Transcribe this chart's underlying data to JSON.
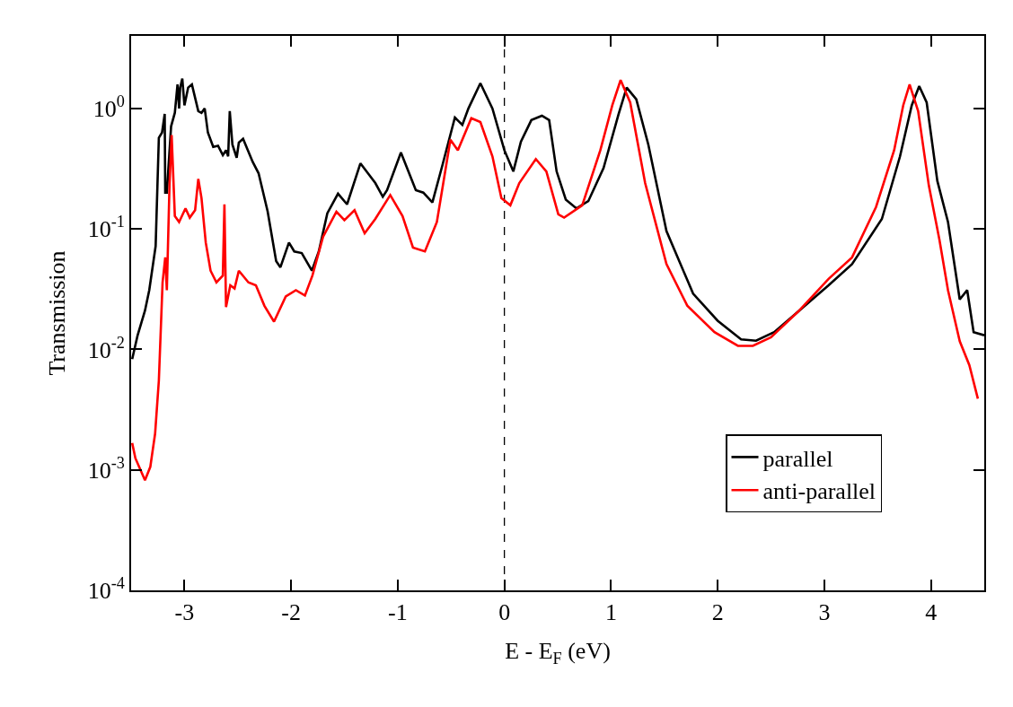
{
  "chart_data": {
    "type": "line",
    "xlabel": "E - E$_{F}$ (eV)",
    "ylabel": "Transmission",
    "log": "y",
    "grid": false,
    "legend": "bottom right",
    "line_style": "solid",
    "marker": "none",
    "xlim": [
      -3.5,
      4.5
    ],
    "xticks": [
      -3,
      -2,
      -1,
      0,
      1,
      2,
      3,
      4
    ],
    "ylim": [
      0.0001,
      4
    ],
    "yticks": [
      {
        "value": 1,
        "label": "10$^{0}$"
      },
      {
        "value": 0.1,
        "label": "10$^{-1}$"
      },
      {
        "value": 0.01,
        "label": "10$^{-2}$"
      },
      {
        "value": 0.001,
        "label": "10$^{-3}$"
      },
      {
        "value": 0.0001,
        "label": "10$^{-4}$"
      }
    ],
    "ref_lines": [
      {
        "axis": "x",
        "value": 0,
        "color": "#000000",
        "line_style": "dashed"
      }
    ],
    "series": [
      {
        "name": "parallel",
        "color": "#000000",
        "x": [
          -3.49,
          -3.44,
          -3.37,
          -3.33,
          -3.27,
          -3.24,
          -3.21,
          -3.185,
          -3.18,
          -3.165,
          -3.125,
          -3.09,
          -3.065,
          -3.05,
          -3.04,
          -3.02,
          -3.0,
          -2.965,
          -2.93,
          -2.87,
          -2.84,
          -2.81,
          -2.78,
          -2.73,
          -2.685,
          -2.64,
          -2.61,
          -2.59,
          -2.575,
          -2.55,
          -2.51,
          -2.49,
          -2.45,
          -2.36,
          -2.305,
          -2.22,
          -2.14,
          -2.1,
          -2.02,
          -1.97,
          -1.9,
          -1.805,
          -1.74,
          -1.66,
          -1.56,
          -1.475,
          -1.35,
          -1.28,
          -1.21,
          -1.14,
          -1.1,
          -0.97,
          -0.83,
          -0.76,
          -0.675,
          -0.58,
          -0.464,
          -0.394,
          -0.337,
          -0.225,
          -0.112,
          0,
          0.084,
          0.155,
          0.253,
          0.352,
          0.42,
          0.49,
          0.576,
          0.675,
          0.787,
          0.93,
          1.07,
          1.147,
          1.237,
          1.35,
          1.52,
          1.77,
          2.0,
          2.22,
          2.36,
          2.53,
          2.755,
          3.04,
          3.26,
          3.54,
          3.71,
          3.82,
          3.89,
          3.96,
          4.06,
          4.16,
          4.27,
          4.34,
          4.4,
          4.5
        ],
        "values": [
          0.0083,
          0.013,
          0.021,
          0.031,
          0.072,
          0.57,
          0.63,
          0.9,
          0.2,
          0.2,
          0.71,
          0.92,
          1.58,
          1.0,
          1.49,
          1.77,
          1.06,
          1.49,
          1.58,
          0.95,
          0.92,
          1.0,
          0.63,
          0.48,
          0.49,
          0.41,
          0.45,
          0.4,
          0.95,
          0.5,
          0.39,
          0.52,
          0.56,
          0.36,
          0.29,
          0.14,
          0.054,
          0.048,
          0.077,
          0.065,
          0.063,
          0.045,
          0.065,
          0.135,
          0.196,
          0.16,
          0.35,
          0.29,
          0.24,
          0.185,
          0.21,
          0.43,
          0.21,
          0.2,
          0.166,
          0.34,
          0.84,
          0.73,
          1.0,
          1.62,
          1.0,
          0.45,
          0.3,
          0.53,
          0.8,
          0.87,
          0.8,
          0.3,
          0.175,
          0.148,
          0.17,
          0.32,
          0.89,
          1.49,
          1.19,
          0.5,
          0.096,
          0.029,
          0.0173,
          0.0121,
          0.0118,
          0.0139,
          0.0206,
          0.034,
          0.051,
          0.121,
          0.4,
          1.06,
          1.53,
          1.12,
          0.25,
          0.114,
          0.026,
          0.031,
          0.0139,
          0.0131
        ]
      },
      {
        "name": "anti-parallel",
        "color": "#ff0000",
        "x": [
          -3.49,
          -3.46,
          -3.37,
          -3.32,
          -3.275,
          -3.24,
          -3.205,
          -3.18,
          -3.165,
          -3.14,
          -3.12,
          -3.09,
          -3.05,
          -2.99,
          -2.95,
          -2.9,
          -2.87,
          -2.84,
          -2.8,
          -2.755,
          -2.7,
          -2.64,
          -2.625,
          -2.61,
          -2.57,
          -2.53,
          -2.49,
          -2.4,
          -2.33,
          -2.25,
          -2.16,
          -2.05,
          -1.955,
          -1.87,
          -1.8,
          -1.7,
          -1.575,
          -1.5,
          -1.405,
          -1.31,
          -1.21,
          -1.07,
          -0.955,
          -0.857,
          -0.745,
          -0.633,
          -0.506,
          -0.436,
          -0.31,
          -0.225,
          -0.112,
          -0.028,
          0.056,
          0.14,
          0.295,
          0.394,
          0.506,
          0.56,
          0.73,
          0.9,
          1.012,
          1.09,
          1.18,
          1.32,
          1.52,
          1.715,
          1.97,
          2.19,
          2.33,
          2.5,
          2.755,
          3.04,
          3.26,
          3.485,
          3.655,
          3.74,
          3.8,
          3.88,
          3.98,
          4.08,
          4.16,
          4.27,
          4.36,
          4.44
        ],
        "values": [
          0.00167,
          0.00125,
          0.00082,
          0.00106,
          0.002,
          0.0055,
          0.036,
          0.058,
          0.031,
          0.23,
          0.6,
          0.128,
          0.114,
          0.148,
          0.124,
          0.143,
          0.26,
          0.18,
          0.077,
          0.045,
          0.036,
          0.041,
          0.16,
          0.0225,
          0.034,
          0.032,
          0.045,
          0.036,
          0.034,
          0.023,
          0.017,
          0.0275,
          0.031,
          0.028,
          0.041,
          0.086,
          0.139,
          0.118,
          0.143,
          0.092,
          0.121,
          0.191,
          0.128,
          0.07,
          0.065,
          0.114,
          0.55,
          0.45,
          0.83,
          0.77,
          0.4,
          0.18,
          0.157,
          0.24,
          0.38,
          0.3,
          0.132,
          0.124,
          0.157,
          0.45,
          1.06,
          1.72,
          1.12,
          0.24,
          0.051,
          0.0231,
          0.0139,
          0.0107,
          0.0107,
          0.0126,
          0.0206,
          0.0385,
          0.058,
          0.152,
          0.45,
          1.06,
          1.58,
          0.95,
          0.23,
          0.081,
          0.031,
          0.0117,
          0.0074,
          0.0039
        ]
      }
    ]
  }
}
